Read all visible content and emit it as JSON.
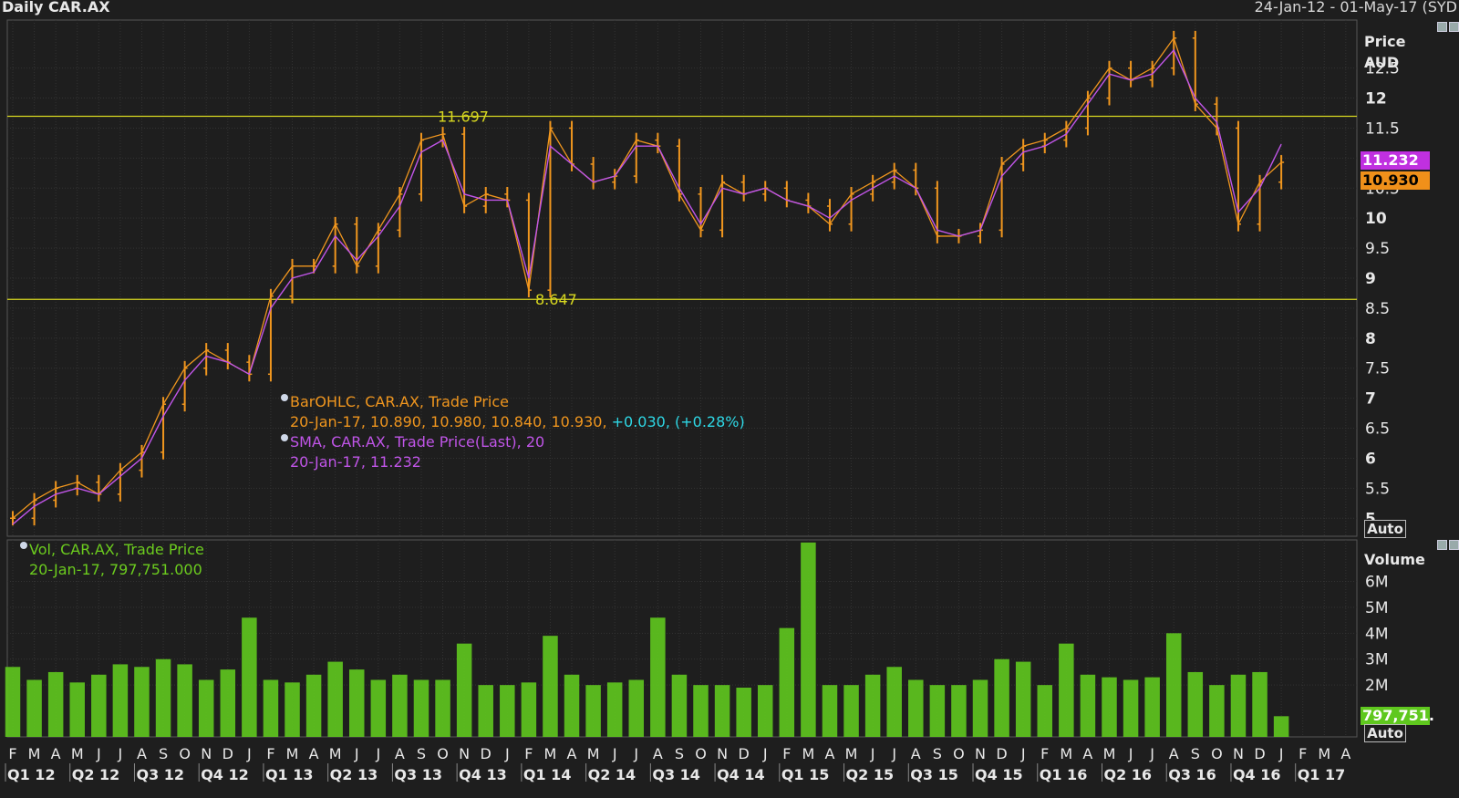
{
  "header": {
    "title": "Daily CAR.AX",
    "range": "24-Jan-12 - 01-May-17 (SYD"
  },
  "price_axis": {
    "title_line1": "Price",
    "title_line2": "AUD",
    "auto_label": "Auto"
  },
  "volume_axis": {
    "title": "Volume",
    "auto_label": "Auto"
  },
  "last_tags": {
    "sma": "11.232",
    "close": "10.930",
    "volume": "797,751."
  },
  "colors": {
    "price": "#f0961e",
    "sma": "#c055e8",
    "volume": "#5fc81e",
    "hline": "#d8d820",
    "change": "#2ed8e6"
  },
  "legend": {
    "ohlc_line1": "BarOHLC, CAR.AX, Trade Price",
    "ohlc_values": "20-Jan-17, 10.890, 10.980, 10.840, 10.930,",
    "ohlc_change": "+0.030, (+0.28%)",
    "sma_line1": "SMA, CAR.AX, Trade Price(Last),  20",
    "sma_values": "20-Jan-17, 11.232",
    "vol_line1": "Vol, CAR.AX, Trade Price",
    "vol_values": "20-Jan-17, 797,751.000"
  },
  "chart_data": [
    {
      "type": "line",
      "title": "Daily CAR.AX",
      "ylabel": "Price AUD",
      "ylim": [
        4.7,
        13.3
      ],
      "y_ticks": [
        "12.5",
        "12",
        "11.5",
        "11",
        "10.5",
        "10",
        "9.5",
        "9",
        "8.5",
        "8",
        "7.5",
        "7",
        "6.5",
        "6",
        "5.5",
        "5"
      ],
      "hlines": [
        {
          "value": 11.697,
          "label": "11.697"
        },
        {
          "value": 8.647,
          "label": "8.647"
        }
      ],
      "series": [
        {
          "name": "BarOHLC, CAR.AX, Trade Price",
          "x": [
            "Feb-12",
            "Mar-12",
            "Apr-12",
            "May-12",
            "Jun-12",
            "Jul-12",
            "Aug-12",
            "Sep-12",
            "Oct-12",
            "Nov-12",
            "Dec-12",
            "Jan-13",
            "Feb-13",
            "Mar-13",
            "Apr-13",
            "May-13",
            "Jun-13",
            "Jul-13",
            "Aug-13",
            "Sep-13",
            "Oct-13",
            "Nov-13",
            "Dec-13",
            "Jan-14",
            "Feb-14",
            "Mar-14",
            "Apr-14",
            "May-14",
            "Jun-14",
            "Jul-14",
            "Aug-14",
            "Sep-14",
            "Oct-14",
            "Nov-14",
            "Dec-14",
            "Jan-15",
            "Feb-15",
            "Mar-15",
            "Apr-15",
            "May-15",
            "Jun-15",
            "Jul-15",
            "Aug-15",
            "Sep-15",
            "Oct-15",
            "Nov-15",
            "Dec-15",
            "Jan-16",
            "Feb-16",
            "Mar-16",
            "Apr-16",
            "May-16",
            "Jun-16",
            "Jul-16",
            "Aug-16",
            "Sep-16",
            "Oct-16",
            "Nov-16",
            "Dec-16",
            "Jan-17"
          ],
          "values": [
            5.0,
            5.3,
            5.5,
            5.6,
            5.4,
            5.8,
            6.1,
            6.9,
            7.5,
            7.8,
            7.6,
            7.4,
            8.7,
            9.2,
            9.2,
            9.9,
            9.2,
            9.8,
            10.4,
            11.3,
            11.4,
            10.2,
            10.4,
            10.3,
            8.8,
            11.5,
            10.9,
            10.6,
            10.7,
            11.3,
            11.2,
            10.4,
            9.8,
            10.6,
            10.4,
            10.5,
            10.3,
            10.2,
            9.9,
            10.4,
            10.6,
            10.8,
            10.5,
            9.7,
            9.7,
            9.8,
            10.9,
            11.2,
            11.3,
            11.5,
            12.0,
            12.5,
            12.3,
            12.5,
            13.0,
            11.9,
            11.5,
            9.9,
            10.6,
            10.93
          ]
        },
        {
          "name": "SMA, CAR.AX, Trade Price(Last), 20",
          "x": [
            "Feb-12",
            "Mar-12",
            "Apr-12",
            "May-12",
            "Jun-12",
            "Jul-12",
            "Aug-12",
            "Sep-12",
            "Oct-12",
            "Nov-12",
            "Dec-12",
            "Jan-13",
            "Feb-13",
            "Mar-13",
            "Apr-13",
            "May-13",
            "Jun-13",
            "Jul-13",
            "Aug-13",
            "Sep-13",
            "Oct-13",
            "Nov-13",
            "Dec-13",
            "Jan-14",
            "Feb-14",
            "Mar-14",
            "Apr-14",
            "May-14",
            "Jun-14",
            "Jul-14",
            "Aug-14",
            "Sep-14",
            "Oct-14",
            "Nov-14",
            "Dec-14",
            "Jan-15",
            "Feb-15",
            "Mar-15",
            "Apr-15",
            "May-15",
            "Jun-15",
            "Jul-15",
            "Aug-15",
            "Sep-15",
            "Oct-15",
            "Nov-15",
            "Dec-15",
            "Jan-16",
            "Feb-16",
            "Mar-16",
            "Apr-16",
            "May-16",
            "Jun-16",
            "Jul-16",
            "Aug-16",
            "Sep-16",
            "Oct-16",
            "Nov-16",
            "Dec-16",
            "Jan-17"
          ],
          "values": [
            4.9,
            5.2,
            5.4,
            5.5,
            5.4,
            5.7,
            6.0,
            6.7,
            7.3,
            7.7,
            7.6,
            7.4,
            8.5,
            9.0,
            9.1,
            9.7,
            9.3,
            9.7,
            10.2,
            11.1,
            11.3,
            10.4,
            10.3,
            10.3,
            9.0,
            11.2,
            10.9,
            10.6,
            10.7,
            11.2,
            11.2,
            10.5,
            9.9,
            10.5,
            10.4,
            10.5,
            10.3,
            10.2,
            10.0,
            10.3,
            10.5,
            10.7,
            10.5,
            9.8,
            9.7,
            9.8,
            10.7,
            11.1,
            11.2,
            11.4,
            11.9,
            12.4,
            12.3,
            12.4,
            12.8,
            12.0,
            11.6,
            10.1,
            10.5,
            11.232
          ]
        }
      ]
    },
    {
      "type": "bar",
      "title": "",
      "ylabel": "Volume",
      "ylim": [
        0,
        7.6
      ],
      "y_ticks": [
        "6M",
        "5M",
        "4M",
        "3M",
        "2M"
      ],
      "series": [
        {
          "name": "Vol, CAR.AX, Trade Price",
          "x": [
            "Feb-12",
            "Mar-12",
            "Apr-12",
            "May-12",
            "Jun-12",
            "Jul-12",
            "Aug-12",
            "Sep-12",
            "Oct-12",
            "Nov-12",
            "Dec-12",
            "Jan-13",
            "Feb-13",
            "Mar-13",
            "Apr-13",
            "May-13",
            "Jun-13",
            "Jul-13",
            "Aug-13",
            "Sep-13",
            "Oct-13",
            "Nov-13",
            "Dec-13",
            "Jan-14",
            "Feb-14",
            "Mar-14",
            "Apr-14",
            "May-14",
            "Jun-14",
            "Jul-14",
            "Aug-14",
            "Sep-14",
            "Oct-14",
            "Nov-14",
            "Dec-14",
            "Jan-15",
            "Feb-15",
            "Mar-15",
            "Apr-15",
            "May-15",
            "Jun-15",
            "Jul-15",
            "Aug-15",
            "Sep-15",
            "Oct-15",
            "Nov-15",
            "Dec-15",
            "Jan-16",
            "Feb-16",
            "Mar-16",
            "Apr-16",
            "May-16",
            "Jun-16",
            "Jul-16",
            "Aug-16",
            "Sep-16",
            "Oct-16",
            "Nov-16",
            "Dec-16",
            "Jan-17"
          ],
          "values": [
            2.7,
            2.2,
            2.5,
            2.1,
            2.4,
            2.8,
            2.7,
            3.0,
            2.8,
            2.2,
            2.6,
            4.6,
            2.2,
            2.1,
            2.4,
            2.9,
            2.6,
            2.2,
            2.4,
            2.2,
            2.2,
            3.6,
            2.0,
            2.0,
            2.1,
            3.9,
            2.4,
            2.0,
            2.1,
            2.2,
            4.6,
            2.4,
            2.0,
            2.0,
            1.9,
            2.0,
            4.2,
            7.5,
            2.0,
            2.0,
            2.4,
            2.7,
            2.2,
            2.0,
            2.0,
            2.2,
            3.0,
            2.9,
            2.0,
            3.6,
            2.4,
            2.3,
            2.2,
            2.3,
            4.0,
            2.5,
            2.0,
            2.4,
            2.5,
            0.797751
          ]
        }
      ]
    }
  ],
  "x_axis": {
    "months": [
      "F",
      "M",
      "A",
      "M",
      "J",
      "J",
      "A",
      "S",
      "O",
      "N",
      "D",
      "J",
      "F",
      "M",
      "A",
      "M",
      "J",
      "J",
      "A",
      "S",
      "O",
      "N",
      "D",
      "J",
      "F",
      "M",
      "A",
      "M",
      "J",
      "J",
      "A",
      "S",
      "O",
      "N",
      "D",
      "J",
      "F",
      "M",
      "A",
      "M",
      "J",
      "J",
      "A",
      "S",
      "O",
      "N",
      "D",
      "J",
      "F",
      "M",
      "A",
      "M",
      "J",
      "J",
      "A",
      "S",
      "O",
      "N",
      "D",
      "J",
      "F",
      "M",
      "A"
    ],
    "quarters": [
      "Q1 12",
      "Q2 12",
      "Q3 12",
      "Q4 12",
      "Q1 13",
      "Q2 13",
      "Q3 13",
      "Q4 13",
      "Q1 14",
      "Q2 14",
      "Q3 14",
      "Q4 14",
      "Q1 15",
      "Q2 15",
      "Q3 15",
      "Q4 15",
      "Q1 16",
      "Q2 16",
      "Q3 16",
      "Q4 16",
      "Q1 17"
    ]
  }
}
